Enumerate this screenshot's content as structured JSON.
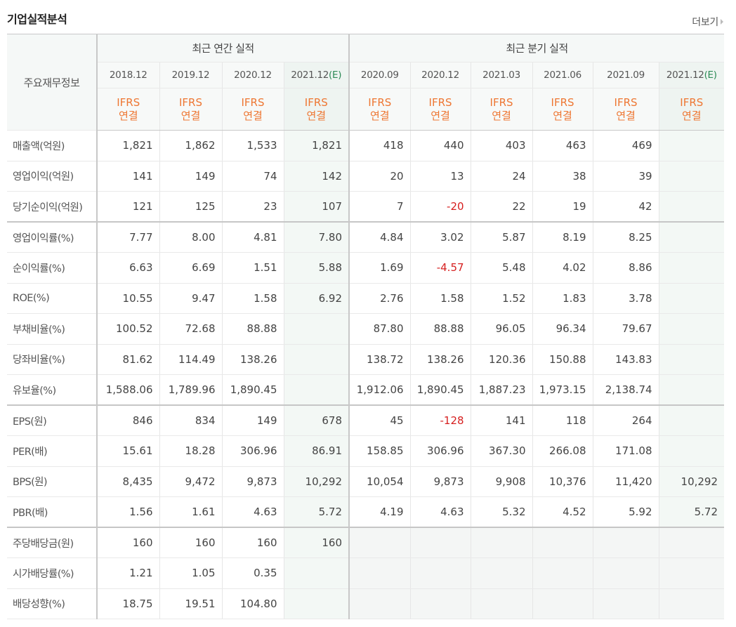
{
  "section": {
    "title": "기업실적분석",
    "more_label": "더보기",
    "more_icon": "triangle-right-icon"
  },
  "table": {
    "corner_label": "주요재무정보",
    "groups": {
      "annual": "최근 연간 실적",
      "quarterly": "최근 분기 실적"
    },
    "periods": [
      {
        "label": "2018.12",
        "est": "",
        "group": "annual"
      },
      {
        "label": "2019.12",
        "est": "",
        "group": "annual"
      },
      {
        "label": "2020.12",
        "est": "",
        "group": "annual"
      },
      {
        "label": "2021.12",
        "est": "(E)",
        "group": "annual"
      },
      {
        "label": "2020.09",
        "est": "",
        "group": "quarterly"
      },
      {
        "label": "2020.12",
        "est": "",
        "group": "quarterly"
      },
      {
        "label": "2021.03",
        "est": "",
        "group": "quarterly"
      },
      {
        "label": "2021.06",
        "est": "",
        "group": "quarterly"
      },
      {
        "label": "2021.09",
        "est": "",
        "group": "quarterly"
      },
      {
        "label": "2021.12",
        "est": "(E)",
        "group": "quarterly"
      }
    ],
    "accounting_line1": "IFRS",
    "accounting_line2": "연결",
    "rows": [
      {
        "label": "매출액(억원)",
        "values": [
          "1,821",
          "1,862",
          "1,533",
          "1,821",
          "418",
          "440",
          "403",
          "463",
          "469",
          ""
        ]
      },
      {
        "label": "영업이익(억원)",
        "values": [
          "141",
          "149",
          "74",
          "142",
          "20",
          "13",
          "24",
          "38",
          "39",
          ""
        ]
      },
      {
        "label": "당기순이익(억원)",
        "values": [
          "121",
          "125",
          "23",
          "107",
          "7",
          "-20",
          "22",
          "19",
          "42",
          ""
        ]
      },
      {
        "label": "영업이익률(%)",
        "values": [
          "7.77",
          "8.00",
          "4.81",
          "7.80",
          "4.84",
          "3.02",
          "5.87",
          "8.19",
          "8.25",
          ""
        ]
      },
      {
        "label": "순이익률(%)",
        "values": [
          "6.63",
          "6.69",
          "1.51",
          "5.88",
          "1.69",
          "-4.57",
          "5.48",
          "4.02",
          "8.86",
          ""
        ]
      },
      {
        "label": "ROE(%)",
        "values": [
          "10.55",
          "9.47",
          "1.58",
          "6.92",
          "2.76",
          "1.58",
          "1.52",
          "1.83",
          "3.78",
          ""
        ]
      },
      {
        "label": "부채비율(%)",
        "values": [
          "100.52",
          "72.68",
          "88.88",
          "",
          "87.80",
          "88.88",
          "96.05",
          "96.34",
          "79.67",
          ""
        ]
      },
      {
        "label": "당좌비율(%)",
        "values": [
          "81.62",
          "114.49",
          "138.26",
          "",
          "138.72",
          "138.26",
          "120.36",
          "150.88",
          "143.83",
          ""
        ]
      },
      {
        "label": "유보율(%)",
        "values": [
          "1,588.06",
          "1,789.96",
          "1,890.45",
          "",
          "1,912.06",
          "1,890.45",
          "1,887.23",
          "1,973.15",
          "2,138.74",
          ""
        ]
      },
      {
        "label": "EPS(원)",
        "values": [
          "846",
          "834",
          "149",
          "678",
          "45",
          "-128",
          "141",
          "118",
          "264",
          ""
        ]
      },
      {
        "label": "PER(배)",
        "values": [
          "15.61",
          "18.28",
          "306.96",
          "86.91",
          "158.85",
          "306.96",
          "367.30",
          "266.08",
          "171.08",
          ""
        ]
      },
      {
        "label": "BPS(원)",
        "values": [
          "8,435",
          "9,472",
          "9,873",
          "10,292",
          "10,054",
          "9,873",
          "9,908",
          "10,376",
          "11,420",
          "10,292"
        ]
      },
      {
        "label": "PBR(배)",
        "values": [
          "1.56",
          "1.61",
          "4.63",
          "5.72",
          "4.19",
          "4.63",
          "5.32",
          "4.52",
          "5.92",
          "5.72"
        ]
      },
      {
        "label": "주당배당금(원)",
        "values": [
          "160",
          "160",
          "160",
          "160",
          "",
          "",
          "",
          "",
          "",
          ""
        ]
      },
      {
        "label": "시가배당률(%)",
        "values": [
          "1.21",
          "1.05",
          "0.35",
          "",
          "",
          "",
          "",
          "",
          "",
          ""
        ]
      },
      {
        "label": "배당성향(%)",
        "values": [
          "18.75",
          "19.51",
          "104.80",
          "",
          "",
          "",
          "",
          "",
          "",
          ""
        ]
      }
    ],
    "colors": {
      "accent_orange": "#ee7733",
      "estimate_green": "#2e8b57",
      "negative_red": "#d61f1f"
    }
  }
}
